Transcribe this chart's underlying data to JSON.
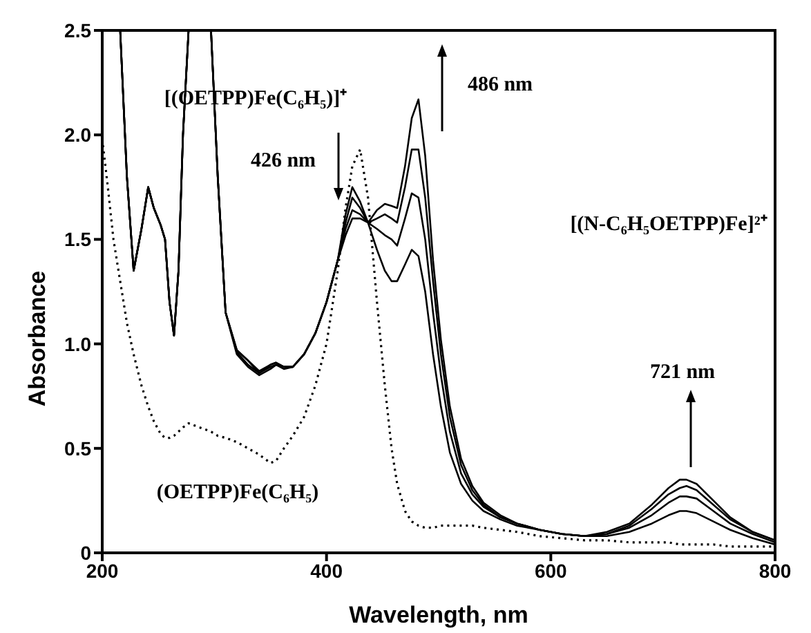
{
  "chart_data": {
    "type": "line",
    "xlabel": "Wavelength, nm",
    "ylabel": "Absorbance",
    "x": [
      200,
      205,
      210,
      216,
      222,
      228,
      235,
      241,
      246,
      252,
      256,
      260,
      264,
      268,
      272,
      277,
      297,
      303,
      310,
      320,
      330,
      340,
      350,
      355,
      362,
      370,
      380,
      390,
      400,
      410,
      417,
      423,
      430,
      437,
      445,
      452,
      458,
      463,
      470,
      476,
      482,
      488,
      495,
      502,
      510,
      520,
      530,
      540,
      555,
      570,
      590,
      610,
      630,
      650,
      670,
      690,
      705,
      715,
      721,
      730,
      745,
      760,
      780,
      800
    ],
    "xlim": [
      200,
      800
    ],
    "xticks": [
      200,
      400,
      600,
      800
    ],
    "ylim": [
      0,
      2.5
    ],
    "yticks": [
      0,
      0.5,
      {
        "value": 1,
        "label": "1.0"
      },
      1.5,
      {
        "value": 2,
        "label": "2.0"
      },
      2.5
    ],
    "grid": false,
    "legend": false,
    "marker": "none",
    "series": [
      {
        "color": "#000000",
        "line_style": "solid",
        "values": [
          null,
          null,
          null,
          2.5,
          1.8,
          1.35,
          1.55,
          1.75,
          1.65,
          1.57,
          1.5,
          1.2,
          1.04,
          1.35,
          2.0,
          2.5,
          2.5,
          1.8,
          1.15,
          0.97,
          0.92,
          0.87,
          0.9,
          0.91,
          0.89,
          0.89,
          0.95,
          1.05,
          1.2,
          1.4,
          1.62,
          1.75,
          1.68,
          1.58,
          1.45,
          1.35,
          1.3,
          1.3,
          1.38,
          1.45,
          1.42,
          1.25,
          0.95,
          0.7,
          0.48,
          0.33,
          0.25,
          0.2,
          0.16,
          0.13,
          0.11,
          0.09,
          0.08,
          0.08,
          0.1,
          0.14,
          0.18,
          0.2,
          0.2,
          0.19,
          0.15,
          0.11,
          0.07,
          0.04
        ]
      },
      {
        "color": "#000000",
        "line_style": "solid",
        "values": [
          null,
          null,
          null,
          2.5,
          1.8,
          1.35,
          1.55,
          1.75,
          1.65,
          1.57,
          1.5,
          1.2,
          1.04,
          1.35,
          2.0,
          2.5,
          2.5,
          1.8,
          1.15,
          0.97,
          0.92,
          0.86,
          0.9,
          0.91,
          0.89,
          0.89,
          0.95,
          1.05,
          1.2,
          1.4,
          1.58,
          1.7,
          1.65,
          1.58,
          1.55,
          1.52,
          1.5,
          1.47,
          1.6,
          1.72,
          1.7,
          1.5,
          1.15,
          0.85,
          0.58,
          0.38,
          0.28,
          0.22,
          0.17,
          0.14,
          0.11,
          0.09,
          0.08,
          0.09,
          0.12,
          0.18,
          0.24,
          0.27,
          0.27,
          0.26,
          0.2,
          0.14,
          0.09,
          0.05
        ]
      },
      {
        "color": "#000000",
        "line_style": "solid",
        "values": [
          null,
          null,
          null,
          2.5,
          1.8,
          1.35,
          1.55,
          1.75,
          1.65,
          1.57,
          1.5,
          1.2,
          1.04,
          1.35,
          2.0,
          2.5,
          2.5,
          1.8,
          1.15,
          0.96,
          0.9,
          0.86,
          0.89,
          0.9,
          0.89,
          0.89,
          0.95,
          1.05,
          1.2,
          1.4,
          1.55,
          1.64,
          1.62,
          1.58,
          1.6,
          1.62,
          1.6,
          1.58,
          1.75,
          1.93,
          1.93,
          1.7,
          1.3,
          0.95,
          0.65,
          0.42,
          0.3,
          0.23,
          0.17,
          0.14,
          0.11,
          0.09,
          0.08,
          0.09,
          0.13,
          0.21,
          0.28,
          0.31,
          0.32,
          0.3,
          0.23,
          0.16,
          0.1,
          0.06
        ]
      },
      {
        "color": "#000000",
        "line_style": "solid",
        "values": [
          null,
          null,
          null,
          2.5,
          1.8,
          1.35,
          1.55,
          1.75,
          1.65,
          1.57,
          1.5,
          1.2,
          1.04,
          1.35,
          2.0,
          2.5,
          2.5,
          1.8,
          1.15,
          0.95,
          0.89,
          0.85,
          0.88,
          0.9,
          0.88,
          0.89,
          0.95,
          1.05,
          1.2,
          1.4,
          1.52,
          1.6,
          1.6,
          1.58,
          1.64,
          1.67,
          1.66,
          1.65,
          1.85,
          2.08,
          2.17,
          1.9,
          1.4,
          1.02,
          0.7,
          0.45,
          0.32,
          0.24,
          0.18,
          0.14,
          0.11,
          0.09,
          0.08,
          0.1,
          0.14,
          0.23,
          0.31,
          0.35,
          0.35,
          0.33,
          0.25,
          0.17,
          0.1,
          0.06
        ]
      },
      {
        "color": "#000000",
        "line_style": "dotted",
        "values": [
          1.98,
          1.75,
          1.5,
          1.3,
          1.1,
          0.95,
          0.8,
          0.7,
          0.63,
          0.57,
          0.55,
          0.55,
          0.56,
          0.58,
          0.6,
          0.62,
          0.58,
          0.56,
          0.55,
          0.53,
          0.5,
          0.47,
          0.43,
          0.44,
          0.5,
          0.56,
          0.65,
          0.8,
          1.0,
          1.35,
          1.65,
          1.85,
          1.93,
          1.7,
          1.2,
          0.8,
          0.5,
          0.33,
          0.2,
          0.15,
          0.13,
          0.12,
          0.12,
          0.13,
          0.13,
          0.13,
          0.13,
          0.12,
          0.11,
          0.1,
          0.08,
          0.07,
          0.06,
          0.06,
          0.05,
          0.05,
          0.05,
          0.04,
          0.04,
          0.04,
          0.04,
          0.03,
          0.03,
          0.03
        ]
      }
    ],
    "annotations": [
      "[(OETPP)Fe(C₆H₅)]⁺",
      "426 nm",
      "486 nm",
      "[(N-C₆H₅OETPP)Fe]²⁺",
      "721 nm",
      "(OETPP)Fe(C₆H₅)"
    ]
  }
}
